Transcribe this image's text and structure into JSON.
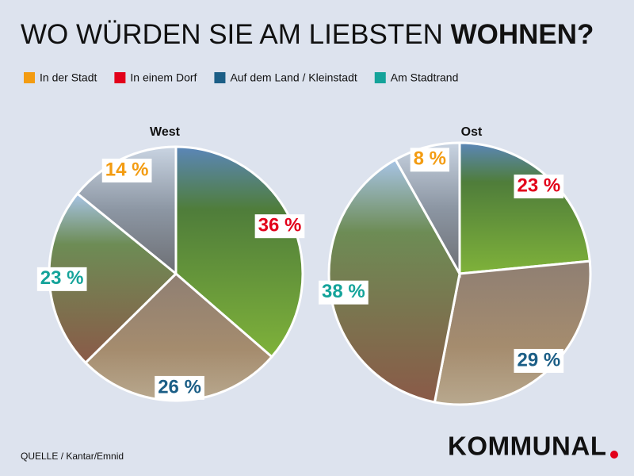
{
  "title": {
    "text": "WO WÜRDEN SIE AM LIEBSTEN",
    "emphasis": "WOHNEN?"
  },
  "legend": [
    {
      "name": "In der Stadt",
      "color": "#f39c12"
    },
    {
      "name": "In einem Dorf",
      "color": "#e2001a"
    },
    {
      "name": "Auf dem Land / Kleinstadt",
      "color": "#1b5e86"
    },
    {
      "name": "Am Stadtrand",
      "color": "#14a39a"
    }
  ],
  "chart_data": [
    {
      "type": "pie",
      "title": "West",
      "categories": [
        "In einem Dorf",
        "Auf dem Land / Kleinstadt",
        "Am Stadtrand",
        "In der Stadt"
      ],
      "values": [
        36,
        26,
        23,
        14
      ],
      "value_labels": [
        "36 %",
        "26 %",
        "23 %",
        "14 %"
      ],
      "colors": [
        "#e2001a",
        "#1b5e86",
        "#14a39a",
        "#f39c12"
      ]
    },
    {
      "type": "pie",
      "title": "Ost",
      "categories": [
        "In einem Dorf",
        "Auf dem Land / Kleinstadt",
        "Am Stadtrand",
        "In der Stadt"
      ],
      "values": [
        23,
        29,
        38,
        8
      ],
      "value_labels": [
        "23 %",
        "29 %",
        "38 %",
        "8 %"
      ],
      "colors": [
        "#e2001a",
        "#1b5e86",
        "#14a39a",
        "#f39c12"
      ]
    }
  ],
  "source": "QUELLE / Kantar/Emnid",
  "brand": "KOMMUNAL"
}
